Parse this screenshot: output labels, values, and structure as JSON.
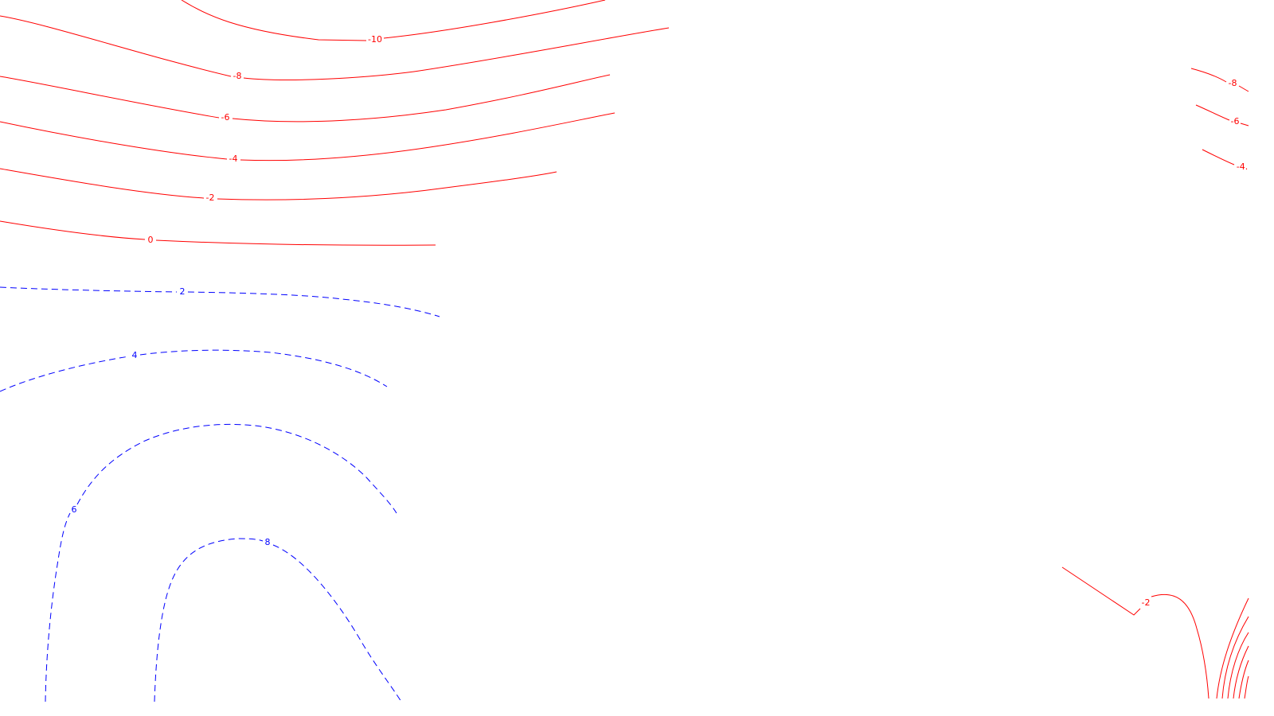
{
  "map": {
    "type": "contour-plot",
    "colors": {
      "negative": "#ff0000",
      "positive": "#0000ff",
      "background": "#ffffff"
    },
    "line_styles": {
      "negative": "solid",
      "positive": "dashed"
    },
    "contours": [
      {
        "id": "m10",
        "label": "-10",
        "sign": "negative"
      },
      {
        "id": "m8",
        "label": "-8",
        "sign": "negative"
      },
      {
        "id": "m6",
        "label": "-6",
        "sign": "negative"
      },
      {
        "id": "m4",
        "label": "-4",
        "sign": "negative"
      },
      {
        "id": "m2",
        "label": "-2",
        "sign": "negative"
      },
      {
        "id": "z0",
        "label": "0",
        "sign": "negative"
      },
      {
        "id": "p2",
        "label": "2",
        "sign": "positive"
      },
      {
        "id": "p4",
        "label": "4",
        "sign": "positive"
      },
      {
        "id": "p6",
        "label": "6",
        "sign": "positive"
      },
      {
        "id": "p8",
        "label": "8",
        "sign": "positive"
      },
      {
        "id": "r_m8",
        "label": "-8",
        "sign": "negative"
      },
      {
        "id": "r_m6",
        "label": "-6",
        "sign": "negative"
      },
      {
        "id": "r_m4",
        "label": "-4.",
        "sign": "negative"
      },
      {
        "id": "r_m2",
        "label": "-2",
        "sign": "negative"
      }
    ]
  }
}
